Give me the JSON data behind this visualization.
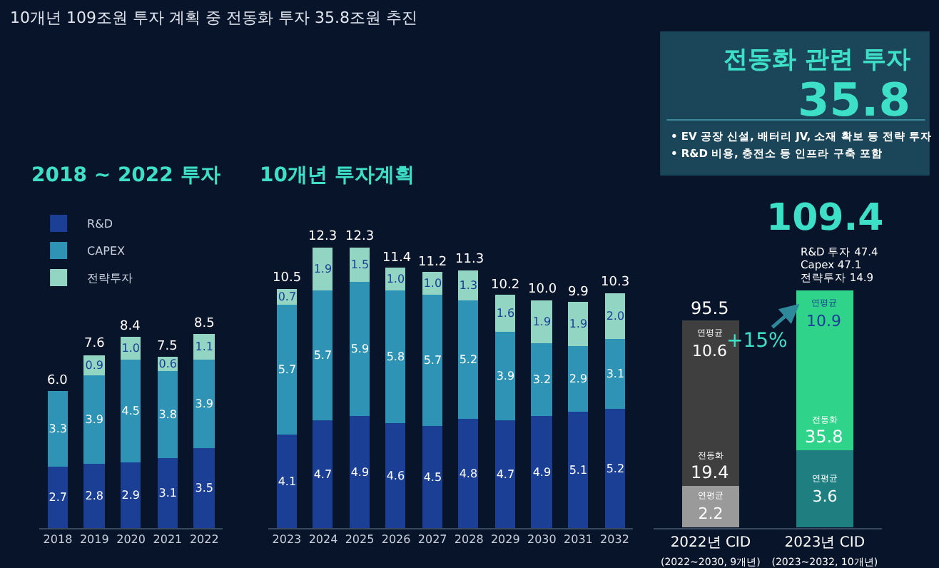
{
  "chart_data": [
    {
      "type": "bar",
      "title": "2018 ~ 2022 투자",
      "stacked": true,
      "legend": "top left",
      "tick_labels": "x",
      "annotations": [
        "10개년 109조원 투자 계획 중 전동화 투자 35.8조원 추진"
      ],
      "categories": [
        "2018",
        "2019",
        "2020",
        "2021",
        "2022"
      ],
      "series": [
        {
          "name": "R&D",
          "color": "#1a3f94",
          "values": [
            2.7,
            2.8,
            2.9,
            3.1,
            3.5
          ],
          "value_labels": [
            "2.7",
            "2.8",
            "2.9",
            "3.1",
            "3.5"
          ]
        },
        {
          "name": "CAPEX",
          "color": "#2e93b5",
          "values": [
            3.3,
            3.9,
            4.5,
            3.8,
            3.9
          ],
          "value_labels": [
            "3.3",
            "3.9",
            "4.5",
            "3.8",
            "3.9"
          ]
        },
        {
          "name": "전략투자",
          "color": "#92d5c3",
          "values": [
            null,
            0.9,
            1.0,
            0.6,
            1.1
          ],
          "value_labels": [
            null,
            "0.9",
            "1.0",
            "0.6",
            "1.1"
          ]
        }
      ],
      "totals": [
        "6.0",
        "7.6",
        "8.4",
        "7.5",
        "8.5"
      ]
    },
    {
      "type": "bar",
      "title": "10개년 투자계획",
      "stacked": true,
      "tick_labels": "x",
      "categories": [
        "2023",
        "2024",
        "2025",
        "2026",
        "2027",
        "2028",
        "2029",
        "2030",
        "2031",
        "2032"
      ],
      "series": [
        {
          "color": "#1a3f94",
          "values": [
            4.1,
            4.7,
            4.9,
            4.6,
            4.5,
            4.8,
            4.7,
            4.9,
            5.1,
            5.2
          ],
          "value_labels": [
            "4.1",
            "4.7",
            "4.9",
            "4.6",
            "4.5",
            "4.8",
            "4.7",
            "4.9",
            "5.1",
            "5.2"
          ]
        },
        {
          "color": "#2e93b5",
          "values": [
            5.7,
            5.7,
            5.9,
            5.8,
            5.7,
            5.2,
            3.9,
            3.2,
            2.9,
            3.1
          ],
          "value_labels": [
            "5.7",
            "5.7",
            "5.9",
            "5.8",
            "5.7",
            "5.2",
            "3.9",
            "3.2",
            "2.9",
            "3.1"
          ]
        },
        {
          "color": "#92d5c3",
          "values": [
            0.7,
            1.9,
            1.5,
            1.0,
            1.0,
            1.3,
            1.6,
            1.9,
            1.9,
            2.0
          ],
          "value_labels": [
            "0.7",
            "1.9",
            "1.5",
            "1.0",
            "1.0",
            "1.3",
            "1.6",
            "1.9",
            "1.9",
            "2.0"
          ]
        }
      ],
      "totals": [
        "10.5",
        "12.3",
        "12.3",
        "11.4",
        "11.2",
        "11.3",
        "10.2",
        "10.0",
        "9.9",
        "10.3"
      ]
    },
    {
      "type": "bar",
      "title": "전동화 관련 투자",
      "stacked": true,
      "tick_labels": "x",
      "categories": [
        "2022년 CID\n(2022~2030, 9개년)",
        "2023년 CID\n(2023~2032, 10개년)"
      ],
      "series": [
        {
          "colors": [
            "#9a9a9a",
            "#1f7f80"
          ],
          "values": [
            19.4,
            35.8
          ],
          "value_labels": [
            "19.4",
            "35.8"
          ]
        },
        {
          "colors": [
            "#3f3f3f",
            "#2fd48a"
          ],
          "values": [
            76.1,
            73.6
          ]
        }
      ],
      "totals": [
        "95.5",
        "109.4"
      ],
      "annotations": [
        "35.8",
        "• EV 공장 신설, 배터리 JV, 소재 확보 등 전략 투자",
        "• R&D 비용, 충전소 등 인프라 구축 포함",
        "R&D 투자 47.4",
        "Capex 47.1",
        "전략투자 14.9",
        "+15%",
        "연평균\n2.2",
        "연평균\n3.6",
        "연평균\n10.6",
        "연평균\n10.9",
        "전동화",
        "전동화"
      ]
    }
  ]
}
